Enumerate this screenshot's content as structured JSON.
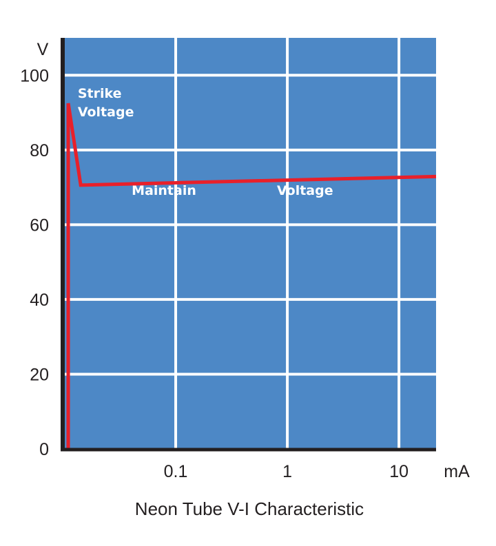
{
  "chart_data": {
    "type": "line",
    "title": "Neon Tube V-I Characteristic",
    "xlabel": "mA",
    "ylabel": "V",
    "xscale": "log",
    "xlim": [
      0.01,
      21.5
    ],
    "ylim": [
      0,
      110
    ],
    "grid": true,
    "x_ticks": [
      {
        "value": 0.1,
        "label": "0.1"
      },
      {
        "value": 1,
        "label": "1"
      },
      {
        "value": 10,
        "label": "10"
      }
    ],
    "y_ticks": [
      {
        "value": 0,
        "label": "0"
      },
      {
        "value": 20,
        "label": "20"
      },
      {
        "value": 40,
        "label": "40"
      },
      {
        "value": 60,
        "label": "60"
      },
      {
        "value": 80,
        "label": "80"
      },
      {
        "value": 100,
        "label": "100"
      }
    ],
    "series": [
      {
        "x": [
          0.0109,
          0.0109,
          0.0141,
          21.5
        ],
        "y": [
          0,
          92.5,
          70.6,
          72.9
        ],
        "color": "#e8202a"
      }
    ],
    "annotations": [
      {
        "lines": [
          "Strike",
          "Voltage"
        ],
        "x": 0.0115,
        "y": 94
      },
      {
        "lines": [
          "Maintain"
        ],
        "x": 0.035,
        "y": 68
      },
      {
        "lines": [
          "Voltage"
        ],
        "x": 0.7,
        "y": 68
      }
    ],
    "colors": {
      "plot_background": "#4d88c6",
      "grid": "#ffffff",
      "axis": "#231f20",
      "line": "#e8202a"
    }
  }
}
